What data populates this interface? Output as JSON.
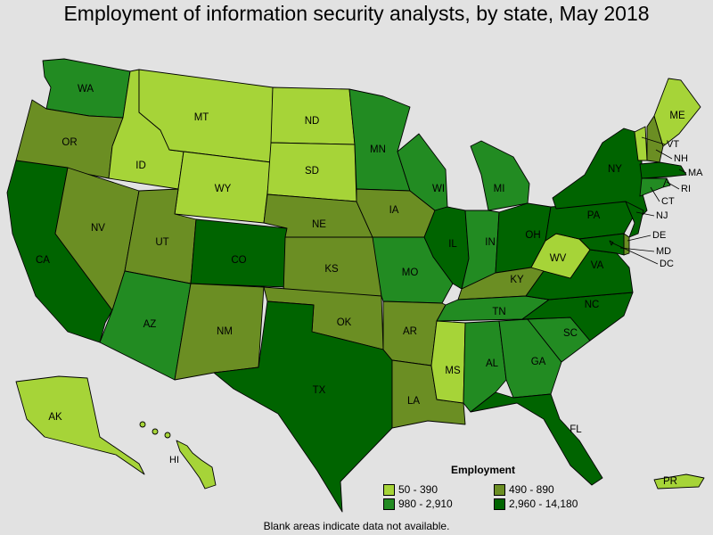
{
  "title": "Employment of information security analysts, by state, May 2018",
  "legend": {
    "title": "Employment",
    "items": [
      {
        "key": "c1",
        "label": "50 - 390",
        "color": "#a6d438"
      },
      {
        "key": "c2",
        "label": "490 - 890",
        "color": "#6b8e23"
      },
      {
        "key": "c3",
        "label": "980 - 2,910",
        "color": "#228b22"
      },
      {
        "key": "c4",
        "label": "2,960 - 14,180",
        "color": "#006400"
      }
    ]
  },
  "footnote": "Blank areas indicate data not available.",
  "states": [
    {
      "abbr": "WA",
      "class": "c3"
    },
    {
      "abbr": "OR",
      "class": "c2"
    },
    {
      "abbr": "CA",
      "class": "c4"
    },
    {
      "abbr": "ID",
      "class": "c1"
    },
    {
      "abbr": "NV",
      "class": "c2"
    },
    {
      "abbr": "MT",
      "class": "c1"
    },
    {
      "abbr": "WY",
      "class": "c1"
    },
    {
      "abbr": "UT",
      "class": "c2"
    },
    {
      "abbr": "AZ",
      "class": "c3"
    },
    {
      "abbr": "CO",
      "class": "c4"
    },
    {
      "abbr": "NM",
      "class": "c2"
    },
    {
      "abbr": "ND",
      "class": "c1"
    },
    {
      "abbr": "SD",
      "class": "c1"
    },
    {
      "abbr": "NE",
      "class": "c2"
    },
    {
      "abbr": "KS",
      "class": "c2"
    },
    {
      "abbr": "OK",
      "class": "c2"
    },
    {
      "abbr": "TX",
      "class": "c4"
    },
    {
      "abbr": "MN",
      "class": "c3"
    },
    {
      "abbr": "IA",
      "class": "c2"
    },
    {
      "abbr": "MO",
      "class": "c3"
    },
    {
      "abbr": "AR",
      "class": "c2"
    },
    {
      "abbr": "LA",
      "class": "c2"
    },
    {
      "abbr": "WI",
      "class": "c3"
    },
    {
      "abbr": "IL",
      "class": "c4"
    },
    {
      "abbr": "MI",
      "class": "c3"
    },
    {
      "abbr": "IN",
      "class": "c3"
    },
    {
      "abbr": "OH",
      "class": "c4"
    },
    {
      "abbr": "KY",
      "class": "c2"
    },
    {
      "abbr": "TN",
      "class": "c3"
    },
    {
      "abbr": "MS",
      "class": "c1"
    },
    {
      "abbr": "AL",
      "class": "c3"
    },
    {
      "abbr": "GA",
      "class": "c3"
    },
    {
      "abbr": "FL",
      "class": "c4"
    },
    {
      "abbr": "SC",
      "class": "c3"
    },
    {
      "abbr": "NC",
      "class": "c4"
    },
    {
      "abbr": "VA",
      "class": "c4"
    },
    {
      "abbr": "WV",
      "class": "c1"
    },
    {
      "abbr": "PA",
      "class": "c4"
    },
    {
      "abbr": "NY",
      "class": "c4"
    },
    {
      "abbr": "VT",
      "class": "c1"
    },
    {
      "abbr": "NH",
      "class": "c2"
    },
    {
      "abbr": "ME",
      "class": "c1"
    },
    {
      "abbr": "MA",
      "class": "c4"
    },
    {
      "abbr": "RI",
      "class": "c3"
    },
    {
      "abbr": "CT",
      "class": "c3"
    },
    {
      "abbr": "NJ",
      "class": "c4"
    },
    {
      "abbr": "DE",
      "class": "c2"
    },
    {
      "abbr": "MD",
      "class": "c4"
    },
    {
      "abbr": "DC",
      "class": "c4"
    },
    {
      "abbr": "AK",
      "class": "c1"
    },
    {
      "abbr": "HI",
      "class": "c1"
    },
    {
      "abbr": "PR",
      "class": "c1"
    }
  ]
}
